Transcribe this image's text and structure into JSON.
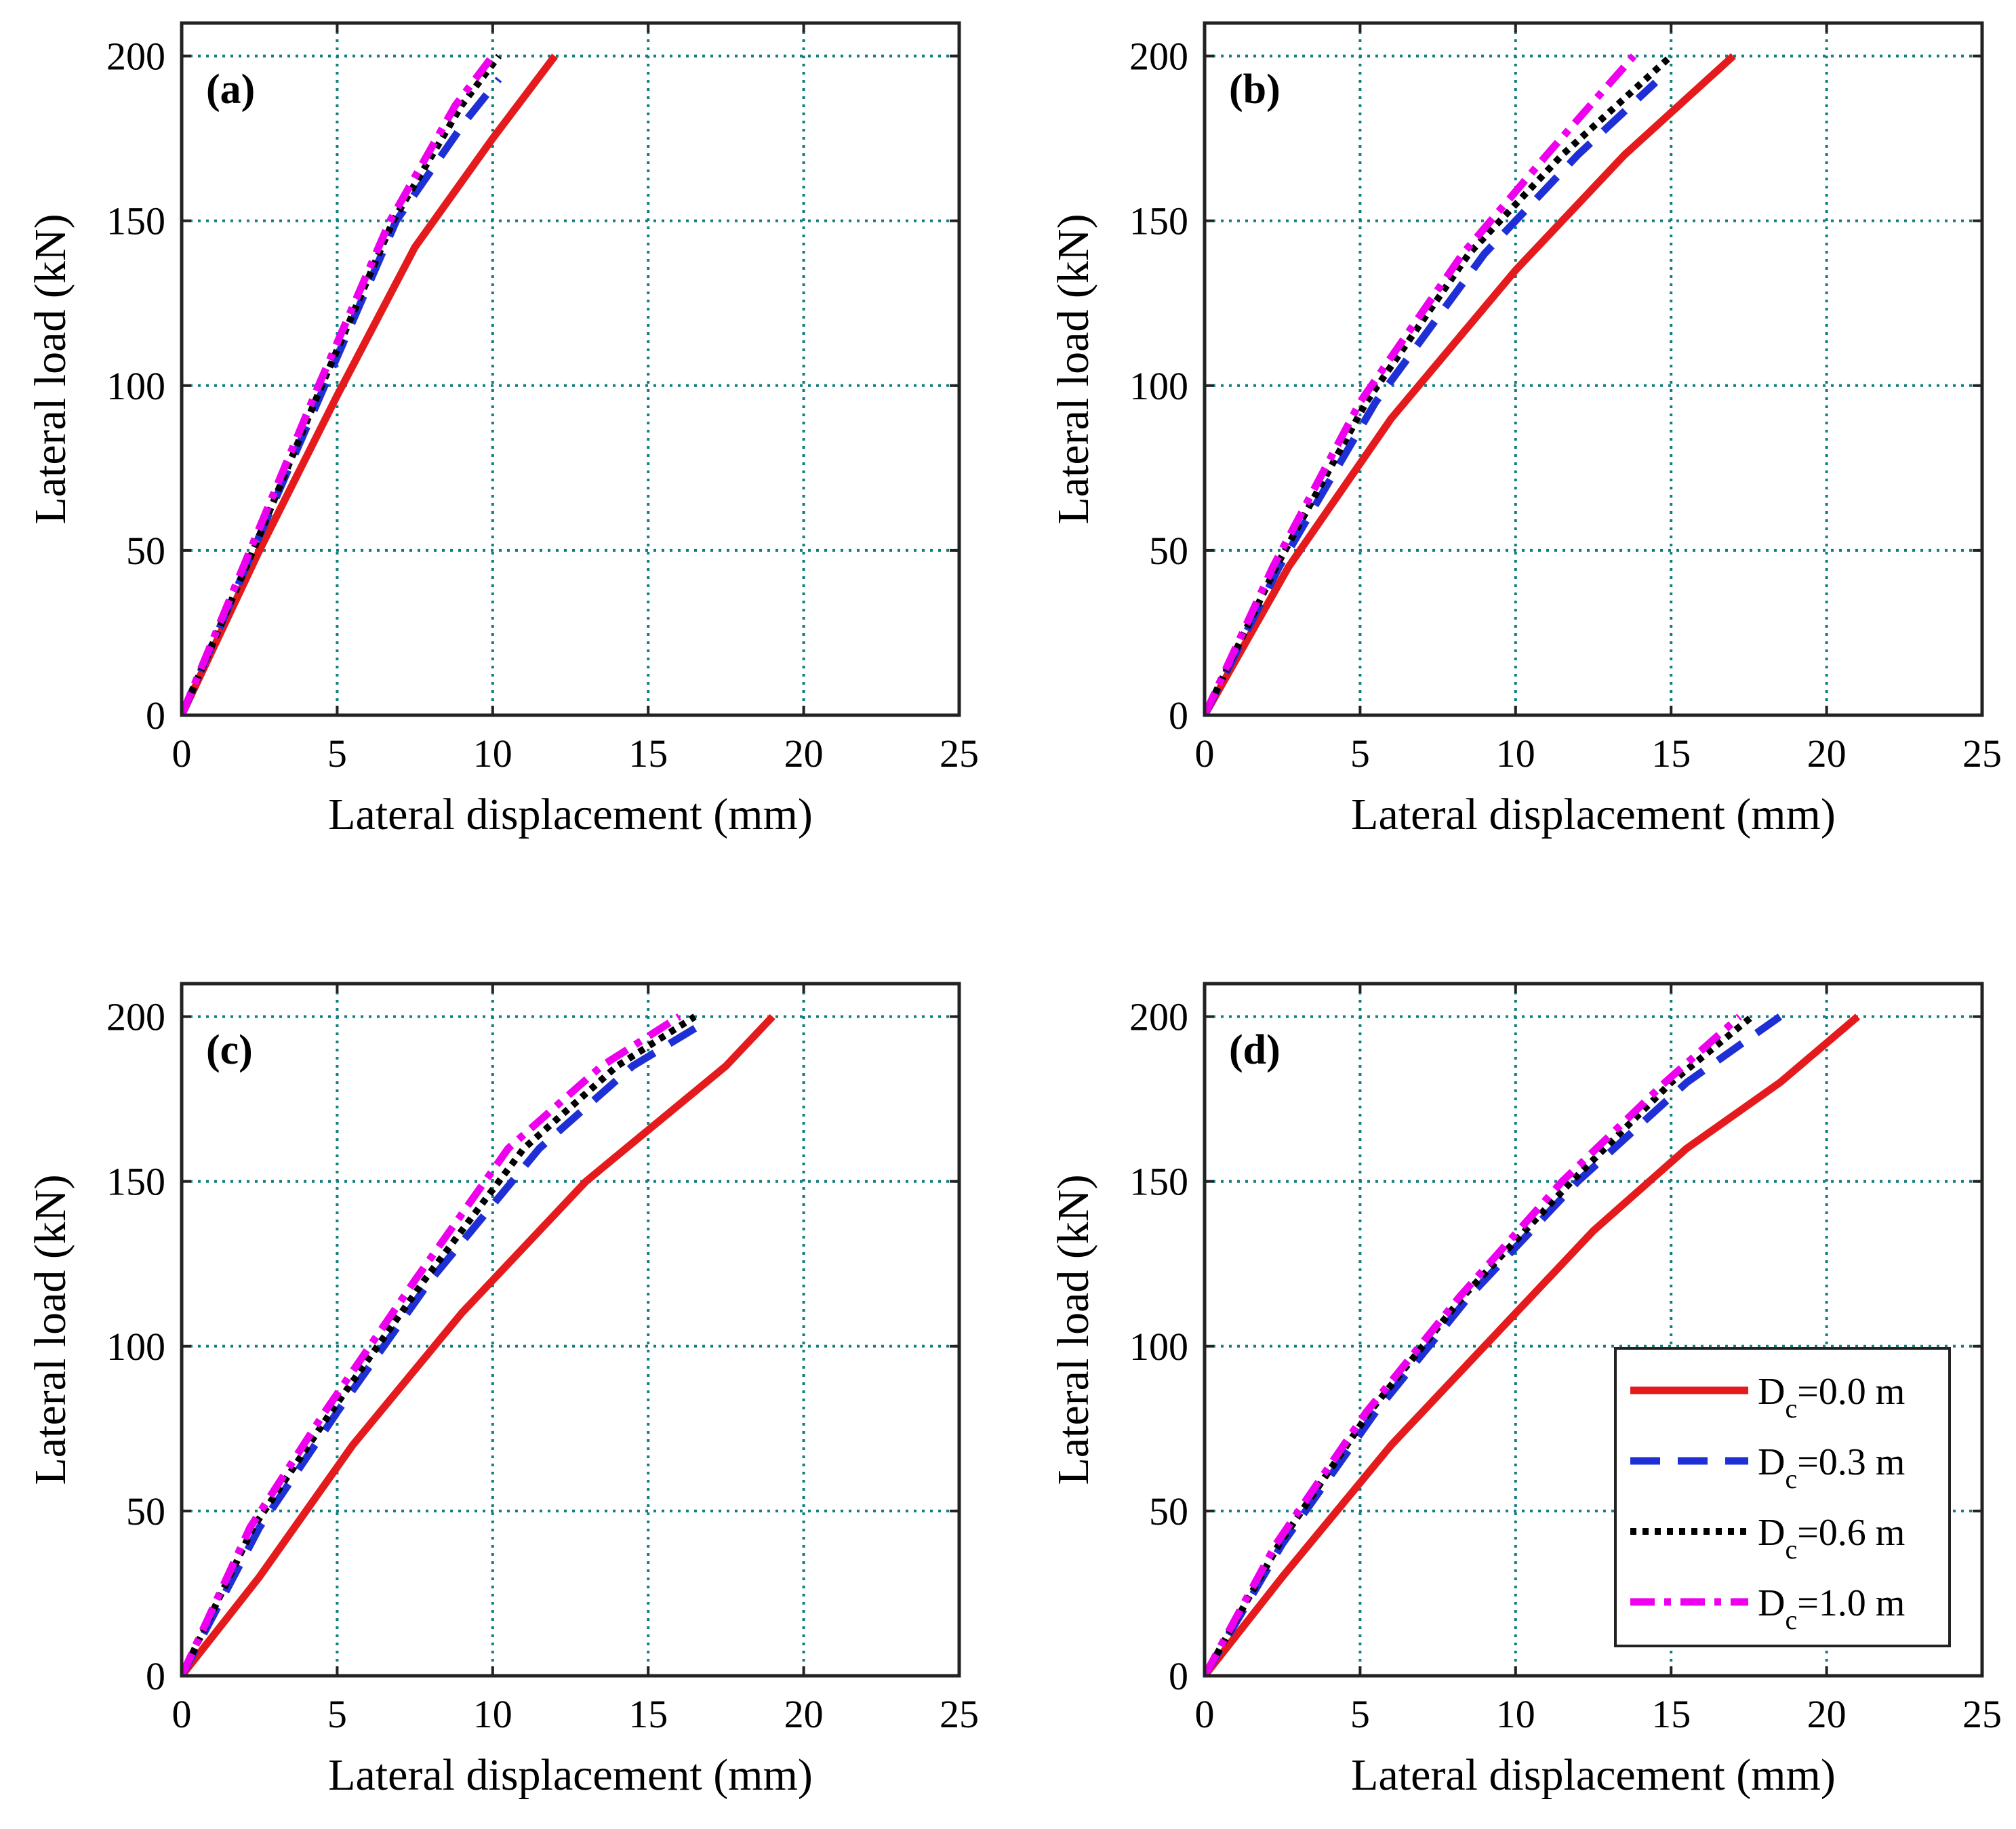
{
  "chart_data": {
    "type": "line",
    "x_label": "Lateral displacement (mm)",
    "y_label": "Lateral load (kN)",
    "xlim": [
      0,
      25
    ],
    "ylim": [
      0,
      210
    ],
    "x_ticks": [
      "0",
      "5",
      "10",
      "15",
      "20",
      "25"
    ],
    "y_ticks": [
      "0",
      "50",
      "100",
      "150",
      "200"
    ],
    "grid": true,
    "series_styles": [
      {
        "key": "Dc00",
        "color": "#e41a1c",
        "style": "solid"
      },
      {
        "key": "Dc03",
        "color": "#1f2fd6",
        "style": "dashed"
      },
      {
        "key": "Dc06",
        "color": "#000000",
        "style": "dotted"
      },
      {
        "key": "Dc10",
        "color": "#ee00ee",
        "style": "dashdot"
      }
    ],
    "legend": {
      "placement": "lower-right of panel (d)",
      "entries": [
        {
          "main": "D",
          "sub": "c",
          "rest": "=0.0 m"
        },
        {
          "main": "D",
          "sub": "c",
          "rest": "=0.3 m"
        },
        {
          "main": "D",
          "sub": "c",
          "rest": "=0.6 m"
        },
        {
          "main": "D",
          "sub": "c",
          "rest": "=1.0 m"
        }
      ]
    },
    "panels": [
      {
        "label": "(a)",
        "series": [
          {
            "name": "Dc=0.0 m",
            "x": [
              0,
              2.5,
              5.0,
              7.5,
              10.0,
              12.0
            ],
            "y": [
              0,
              50,
              97,
              142,
              175,
              200
            ]
          },
          {
            "name": "Dc=0.3 m",
            "x": [
              0,
              2.3,
              4.6,
              6.9,
              9.1,
              10.2
            ],
            "y": [
              0,
              50,
              100,
              150,
              180,
              193
            ]
          },
          {
            "name": "Dc=0.6 m",
            "x": [
              0,
              2.3,
              4.5,
              6.8,
              9.0,
              10.2
            ],
            "y": [
              0,
              50,
              100,
              150,
              185,
              200
            ]
          },
          {
            "name": "Dc=1.0 m",
            "x": [
              0,
              2.2,
              4.4,
              6.7,
              8.8,
              10.0
            ],
            "y": [
              0,
              50,
              100,
              150,
              185,
              200
            ]
          }
        ]
      },
      {
        "label": "(b)",
        "series": [
          {
            "name": "Dc=0.0 m",
            "x": [
              0,
              2.7,
              6.0,
              10.0,
              13.5,
              17.0
            ],
            "y": [
              0,
              45,
              90,
              135,
              170,
              200
            ]
          },
          {
            "name": "Dc=0.3 m",
            "x": [
              0,
              2.4,
              5.5,
              9.0,
              12.0,
              14.5
            ],
            "y": [
              0,
              45,
              95,
              140,
              170,
              192
            ]
          },
          {
            "name": "Dc=0.6 m",
            "x": [
              0,
              2.3,
              5.2,
              8.5,
              11.5,
              15.0
            ],
            "y": [
              0,
              45,
              95,
              140,
              170,
              200
            ]
          },
          {
            "name": "Dc=1.0 m",
            "x": [
              0,
              2.2,
              5.0,
              8.3,
              11.0,
              13.8
            ],
            "y": [
              0,
              45,
              95,
              140,
              170,
              200
            ]
          }
        ]
      },
      {
        "label": "(c)",
        "series": [
          {
            "name": "Dc=0.0 m",
            "x": [
              0,
              2.5,
              5.5,
              9.0,
              13.0,
              17.5,
              19.0
            ],
            "y": [
              0,
              30,
              70,
              110,
              150,
              185,
              200
            ]
          },
          {
            "name": "Dc=0.3 m",
            "x": [
              0,
              2.5,
              5.0,
              8.0,
              11.5,
              14.5,
              16.6
            ],
            "y": [
              0,
              45,
              80,
              120,
              160,
              185,
              197
            ]
          },
          {
            "name": "Dc=0.6 m",
            "x": [
              0,
              2.3,
              4.8,
              7.8,
              11.0,
              14.0,
              16.5
            ],
            "y": [
              0,
              45,
              80,
              120,
              160,
              185,
              200
            ]
          },
          {
            "name": "Dc=1.0 m",
            "x": [
              0,
              2.2,
              4.6,
              7.5,
              10.5,
              13.5,
              16.0
            ],
            "y": [
              0,
              45,
              80,
              120,
              160,
              185,
              200
            ]
          }
        ]
      },
      {
        "label": "(d)",
        "series": [
          {
            "name": "Dc=0.0 m",
            "x": [
              0,
              2.5,
              6.0,
              9.0,
              12.5,
              15.5,
              18.5,
              21.0
            ],
            "y": [
              0,
              30,
              70,
              100,
              135,
              160,
              180,
              200
            ]
          },
          {
            "name": "Dc=0.3 m",
            "x": [
              0,
              2.5,
              5.5,
              8.5,
              12.0,
              15.5,
              18.5
            ],
            "y": [
              0,
              40,
              80,
              115,
              150,
              180,
              200
            ]
          },
          {
            "name": "Dc=0.6 m",
            "x": [
              0,
              2.4,
              5.3,
              8.3,
              11.8,
              15.0,
              17.6
            ],
            "y": [
              0,
              40,
              80,
              115,
              150,
              180,
              200
            ]
          },
          {
            "name": "Dc=1.0 m",
            "x": [
              0,
              2.3,
              5.2,
              8.2,
              11.5,
              14.8,
              17.2
            ],
            "y": [
              0,
              40,
              80,
              115,
              150,
              180,
              200
            ]
          }
        ]
      }
    ]
  }
}
